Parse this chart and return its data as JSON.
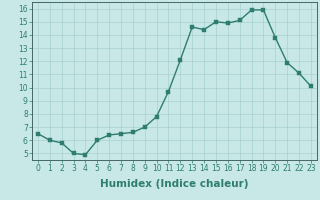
{
  "x": [
    0,
    1,
    2,
    3,
    4,
    5,
    6,
    7,
    8,
    9,
    10,
    11,
    12,
    13,
    14,
    15,
    16,
    17,
    18,
    19,
    20,
    21,
    22,
    23
  ],
  "y": [
    6.5,
    6.0,
    5.8,
    5.0,
    4.9,
    6.0,
    6.4,
    6.5,
    6.6,
    7.0,
    7.8,
    9.7,
    12.1,
    14.6,
    14.4,
    15.0,
    14.9,
    15.1,
    15.9,
    15.9,
    13.8,
    11.9,
    11.1,
    10.1
  ],
  "line_color": "#2e7d6e",
  "marker_color": "#2e7d6e",
  "bg_color": "#c8e8e8",
  "grid_color": "#a8d0d0",
  "xlabel": "Humidex (Indice chaleur)",
  "ylim": [
    4.5,
    16.5
  ],
  "xlim": [
    -0.5,
    23.5
  ],
  "yticks": [
    5,
    6,
    7,
    8,
    9,
    10,
    11,
    12,
    13,
    14,
    15,
    16
  ],
  "xticks": [
    0,
    1,
    2,
    3,
    4,
    5,
    6,
    7,
    8,
    9,
    10,
    11,
    12,
    13,
    14,
    15,
    16,
    17,
    18,
    19,
    20,
    21,
    22,
    23
  ],
  "tick_label_fontsize": 5.5,
  "xlabel_fontsize": 7.5,
  "line_width": 1.0,
  "marker_size": 2.5
}
